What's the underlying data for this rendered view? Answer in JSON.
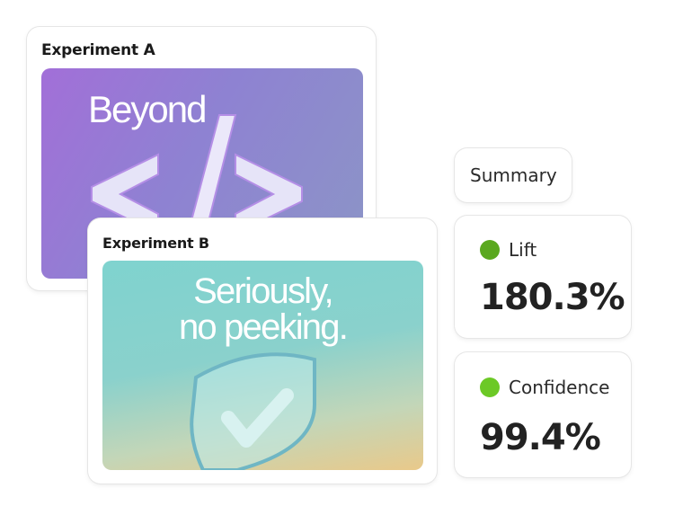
{
  "experiments": [
    {
      "title": "Experiment A",
      "image_text": "Beyond",
      "image_icon": "code-brackets-icon"
    },
    {
      "title": "Experiment B",
      "image_text_line1": "Seriously,",
      "image_text_line2": "no peeking.",
      "image_icon": "shield-check-icon"
    }
  ],
  "summary": {
    "label": "Summary"
  },
  "metrics": [
    {
      "label": "Lift",
      "value": "180.3%",
      "dot_color": "#5aa81f"
    },
    {
      "label": "Confidence",
      "value": "99.4%",
      "dot_color": "#6cc926"
    }
  ]
}
